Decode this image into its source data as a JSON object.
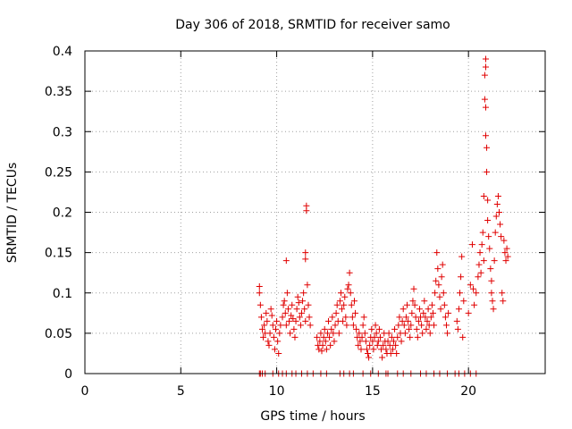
{
  "chart_data": {
    "type": "scatter",
    "title": "Day 306 of 2018, SRMTID for receiver samo",
    "xlabel": "GPS time / hours",
    "ylabel": "SRMTID / TECUs",
    "xlim": [
      0,
      24
    ],
    "ylim": [
      0,
      0.4
    ],
    "xticks": [
      0,
      5,
      10,
      15,
      20
    ],
    "yticks": [
      0,
      0.05,
      0.1,
      0.15,
      0.2,
      0.25,
      0.3,
      0.35,
      0.4
    ],
    "xtick_labels": [
      "0",
      "5",
      "10",
      "15",
      "20"
    ],
    "ytick_labels": [
      "0",
      "0.05",
      "0.1",
      "0.15",
      "0.2",
      "0.25",
      "0.3",
      "0.35",
      "0.4"
    ],
    "grid": true,
    "marker": "+",
    "color": "#e00000",
    "points": [
      [
        9.1,
        0.0
      ],
      [
        9.15,
        0.0
      ],
      [
        9.25,
        0.0
      ],
      [
        9.4,
        0.0
      ],
      [
        9.8,
        0.0
      ],
      [
        10.1,
        0.0
      ],
      [
        10.3,
        0.0
      ],
      [
        10.5,
        0.0
      ],
      [
        10.8,
        0.0
      ],
      [
        11.0,
        0.0
      ],
      [
        11.3,
        0.0
      ],
      [
        11.6,
        0.0
      ],
      [
        11.9,
        0.0
      ],
      [
        12.3,
        0.0
      ],
      [
        12.6,
        0.0
      ],
      [
        13.3,
        0.0
      ],
      [
        13.5,
        0.0
      ],
      [
        13.8,
        0.0
      ],
      [
        14.0,
        0.0
      ],
      [
        14.5,
        0.0
      ],
      [
        14.9,
        0.0
      ],
      [
        15.3,
        0.0
      ],
      [
        15.7,
        0.0
      ],
      [
        15.8,
        0.0
      ],
      [
        16.3,
        0.0
      ],
      [
        16.6,
        0.0
      ],
      [
        17.0,
        0.0
      ],
      [
        17.5,
        0.0
      ],
      [
        17.8,
        0.0
      ],
      [
        18.2,
        0.0
      ],
      [
        18.5,
        0.0
      ],
      [
        18.9,
        0.0
      ],
      [
        19.3,
        0.0
      ],
      [
        19.5,
        0.0
      ],
      [
        19.8,
        0.0
      ],
      [
        20.1,
        0.0
      ],
      [
        20.4,
        0.0
      ],
      [
        9.1,
        0.108
      ],
      [
        9.1,
        0.1
      ],
      [
        9.15,
        0.085
      ],
      [
        9.2,
        0.07
      ],
      [
        9.25,
        0.055
      ],
      [
        9.3,
        0.045
      ],
      [
        9.35,
        0.06
      ],
      [
        9.4,
        0.05
      ],
      [
        9.45,
        0.075
      ],
      [
        9.5,
        0.065
      ],
      [
        9.55,
        0.04
      ],
      [
        9.6,
        0.035
      ],
      [
        9.65,
        0.05
      ],
      [
        9.7,
        0.08
      ],
      [
        9.75,
        0.072
      ],
      [
        9.8,
        0.06
      ],
      [
        9.85,
        0.045
      ],
      [
        9.9,
        0.03
      ],
      [
        9.95,
        0.055
      ],
      [
        10.0,
        0.065
      ],
      [
        10.05,
        0.04
      ],
      [
        10.1,
        0.025
      ],
      [
        10.15,
        0.05
      ],
      [
        10.2,
        0.06
      ],
      [
        10.3,
        0.07
      ],
      [
        10.35,
        0.085
      ],
      [
        10.4,
        0.09
      ],
      [
        10.45,
        0.075
      ],
      [
        10.5,
        0.06
      ],
      [
        10.5,
        0.14
      ],
      [
        10.55,
        0.1
      ],
      [
        10.6,
        0.08
      ],
      [
        10.65,
        0.065
      ],
      [
        10.7,
        0.05
      ],
      [
        10.75,
        0.072
      ],
      [
        10.8,
        0.085
      ],
      [
        10.85,
        0.068
      ],
      [
        10.9,
        0.055
      ],
      [
        10.95,
        0.045
      ],
      [
        11.0,
        0.065
      ],
      [
        11.05,
        0.08
      ],
      [
        11.1,
        0.095
      ],
      [
        11.15,
        0.088
      ],
      [
        11.2,
        0.07
      ],
      [
        11.25,
        0.06
      ],
      [
        11.3,
        0.075
      ],
      [
        11.35,
        0.09
      ],
      [
        11.4,
        0.1
      ],
      [
        11.45,
        0.08
      ],
      [
        11.5,
        0.065
      ],
      [
        11.5,
        0.15
      ],
      [
        11.5,
        0.142
      ],
      [
        11.55,
        0.208
      ],
      [
        11.55,
        0.202
      ],
      [
        11.6,
        0.11
      ],
      [
        11.65,
        0.085
      ],
      [
        11.7,
        0.07
      ],
      [
        11.75,
        0.06
      ],
      [
        12.1,
        0.045
      ],
      [
        12.15,
        0.035
      ],
      [
        12.2,
        0.03
      ],
      [
        12.25,
        0.04
      ],
      [
        12.3,
        0.05
      ],
      [
        12.35,
        0.028
      ],
      [
        12.4,
        0.035
      ],
      [
        12.45,
        0.045
      ],
      [
        12.5,
        0.055
      ],
      [
        12.55,
        0.04
      ],
      [
        12.6,
        0.03
      ],
      [
        12.65,
        0.05
      ],
      [
        12.7,
        0.065
      ],
      [
        12.75,
        0.045
      ],
      [
        12.8,
        0.035
      ],
      [
        12.85,
        0.055
      ],
      [
        12.9,
        0.07
      ],
      [
        12.95,
        0.05
      ],
      [
        13.0,
        0.04
      ],
      [
        13.05,
        0.06
      ],
      [
        13.1,
        0.075
      ],
      [
        13.15,
        0.085
      ],
      [
        13.2,
        0.065
      ],
      [
        13.25,
        0.05
      ],
      [
        13.3,
        0.09
      ],
      [
        13.35,
        0.1
      ],
      [
        13.4,
        0.08
      ],
      [
        13.45,
        0.065
      ],
      [
        13.5,
        0.085
      ],
      [
        13.55,
        0.095
      ],
      [
        13.6,
        0.07
      ],
      [
        13.65,
        0.06
      ],
      [
        13.7,
        0.105
      ],
      [
        13.75,
        0.11
      ],
      [
        13.8,
        0.125
      ],
      [
        13.85,
        0.1
      ],
      [
        13.9,
        0.085
      ],
      [
        13.95,
        0.07
      ],
      [
        14.0,
        0.06
      ],
      [
        14.05,
        0.09
      ],
      [
        14.1,
        0.075
      ],
      [
        14.15,
        0.055
      ],
      [
        14.2,
        0.045
      ],
      [
        14.25,
        0.035
      ],
      [
        14.3,
        0.05
      ],
      [
        14.35,
        0.04
      ],
      [
        14.4,
        0.03
      ],
      [
        14.45,
        0.045
      ],
      [
        14.5,
        0.06
      ],
      [
        14.55,
        0.07
      ],
      [
        14.6,
        0.05
      ],
      [
        14.65,
        0.04
      ],
      [
        14.7,
        0.03
      ],
      [
        14.75,
        0.025
      ],
      [
        14.8,
        0.02
      ],
      [
        14.85,
        0.035
      ],
      [
        14.9,
        0.045
      ],
      [
        14.95,
        0.055
      ],
      [
        15.0,
        0.04
      ],
      [
        15.05,
        0.03
      ],
      [
        15.1,
        0.045
      ],
      [
        15.15,
        0.06
      ],
      [
        15.2,
        0.05
      ],
      [
        15.25,
        0.035
      ],
      [
        15.3,
        0.04
      ],
      [
        15.35,
        0.055
      ],
      [
        15.4,
        0.045
      ],
      [
        15.45,
        0.03
      ],
      [
        15.5,
        0.02
      ],
      [
        15.55,
        0.035
      ],
      [
        15.6,
        0.05
      ],
      [
        15.65,
        0.04
      ],
      [
        15.7,
        0.03
      ],
      [
        15.75,
        0.025
      ],
      [
        15.8,
        0.04
      ],
      [
        15.85,
        0.05
      ],
      [
        15.9,
        0.035
      ],
      [
        15.95,
        0.025
      ],
      [
        16.0,
        0.045
      ],
      [
        16.05,
        0.03
      ],
      [
        16.1,
        0.04
      ],
      [
        16.15,
        0.055
      ],
      [
        16.2,
        0.035
      ],
      [
        16.25,
        0.025
      ],
      [
        16.3,
        0.045
      ],
      [
        16.35,
        0.06
      ],
      [
        16.4,
        0.07
      ],
      [
        16.45,
        0.05
      ],
      [
        16.5,
        0.04
      ],
      [
        16.55,
        0.065
      ],
      [
        16.6,
        0.08
      ],
      [
        16.65,
        0.06
      ],
      [
        16.7,
        0.05
      ],
      [
        16.75,
        0.07
      ],
      [
        16.8,
        0.085
      ],
      [
        16.85,
        0.065
      ],
      [
        16.9,
        0.055
      ],
      [
        16.95,
        0.045
      ],
      [
        17.0,
        0.06
      ],
      [
        17.05,
        0.075
      ],
      [
        17.1,
        0.09
      ],
      [
        17.15,
        0.105
      ],
      [
        17.2,
        0.085
      ],
      [
        17.25,
        0.07
      ],
      [
        17.3,
        0.055
      ],
      [
        17.35,
        0.045
      ],
      [
        17.4,
        0.065
      ],
      [
        17.45,
        0.08
      ],
      [
        17.5,
        0.07
      ],
      [
        17.55,
        0.06
      ],
      [
        17.6,
        0.05
      ],
      [
        17.65,
        0.075
      ],
      [
        17.7,
        0.09
      ],
      [
        17.75,
        0.07
      ],
      [
        17.8,
        0.055
      ],
      [
        17.85,
        0.065
      ],
      [
        17.9,
        0.08
      ],
      [
        17.95,
        0.06
      ],
      [
        18.0,
        0.05
      ],
      [
        18.05,
        0.07
      ],
      [
        18.1,
        0.085
      ],
      [
        18.15,
        0.075
      ],
      [
        18.2,
        0.06
      ],
      [
        18.25,
        0.1
      ],
      [
        18.3,
        0.115
      ],
      [
        18.35,
        0.15
      ],
      [
        18.4,
        0.13
      ],
      [
        18.45,
        0.11
      ],
      [
        18.5,
        0.095
      ],
      [
        18.55,
        0.08
      ],
      [
        18.6,
        0.12
      ],
      [
        18.65,
        0.135
      ],
      [
        18.7,
        0.1
      ],
      [
        18.75,
        0.085
      ],
      [
        18.8,
        0.07
      ],
      [
        18.85,
        0.06
      ],
      [
        18.9,
        0.05
      ],
      [
        18.95,
        0.075
      ],
      [
        19.4,
        0.065
      ],
      [
        19.45,
        0.055
      ],
      [
        19.5,
        0.08
      ],
      [
        19.55,
        0.1
      ],
      [
        19.6,
        0.12
      ],
      [
        19.65,
        0.145
      ],
      [
        19.7,
        0.045
      ],
      [
        19.75,
        0.09
      ],
      [
        20.0,
        0.075
      ],
      [
        20.1,
        0.11
      ],
      [
        20.2,
        0.16
      ],
      [
        20.25,
        0.105
      ],
      [
        20.3,
        0.085
      ],
      [
        20.4,
        0.1
      ],
      [
        20.5,
        0.12
      ],
      [
        20.55,
        0.135
      ],
      [
        20.6,
        0.15
      ],
      [
        20.65,
        0.125
      ],
      [
        20.7,
        0.16
      ],
      [
        20.75,
        0.175
      ],
      [
        20.8,
        0.14
      ],
      [
        20.8,
        0.22
      ],
      [
        20.85,
        0.34
      ],
      [
        20.85,
        0.37
      ],
      [
        20.9,
        0.39
      ],
      [
        20.9,
        0.38
      ],
      [
        20.9,
        0.33
      ],
      [
        20.9,
        0.295
      ],
      [
        20.95,
        0.28
      ],
      [
        20.95,
        0.25
      ],
      [
        21.0,
        0.215
      ],
      [
        21.0,
        0.19
      ],
      [
        21.05,
        0.17
      ],
      [
        21.1,
        0.155
      ],
      [
        21.15,
        0.13
      ],
      [
        21.2,
        0.115
      ],
      [
        21.2,
        0.1
      ],
      [
        21.25,
        0.09
      ],
      [
        21.3,
        0.08
      ],
      [
        21.35,
        0.14
      ],
      [
        21.4,
        0.175
      ],
      [
        21.45,
        0.195
      ],
      [
        21.5,
        0.21
      ],
      [
        21.55,
        0.22
      ],
      [
        21.6,
        0.2
      ],
      [
        21.65,
        0.185
      ],
      [
        21.7,
        0.17
      ],
      [
        21.75,
        0.1
      ],
      [
        21.8,
        0.09
      ],
      [
        21.85,
        0.165
      ],
      [
        21.9,
        0.15
      ],
      [
        21.95,
        0.14
      ],
      [
        22.0,
        0.155
      ],
      [
        22.05,
        0.145
      ]
    ]
  }
}
